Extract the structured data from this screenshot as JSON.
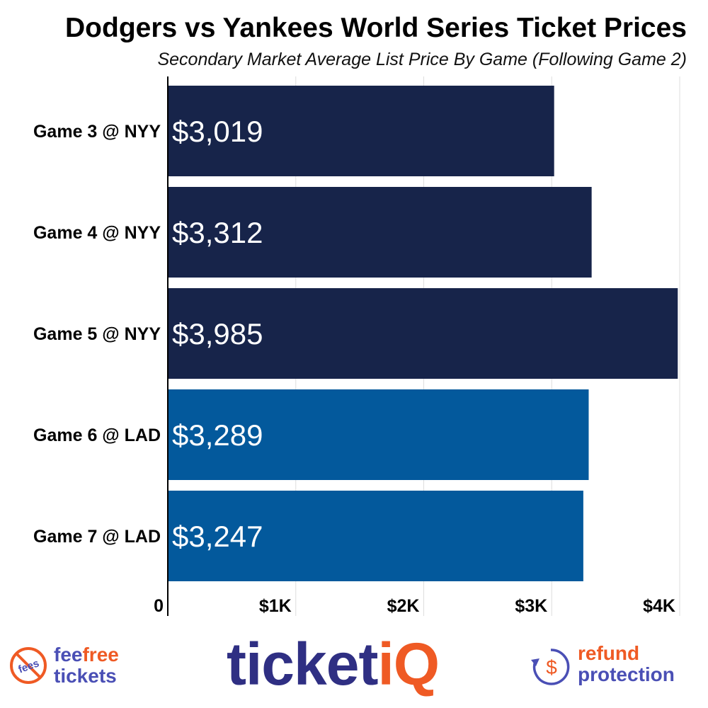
{
  "chart_data": {
    "type": "bar",
    "orientation": "horizontal",
    "title": "Dodgers vs Yankees World Series Ticket Prices",
    "subtitle": "Secondary Market Average List Price By Game (Following Game 2)",
    "categories": [
      "Game 3 @ NYY",
      "Game 4 @ NYY",
      "Game 5 @ NYY",
      "Game 6 @ LAD",
      "Game 7 @ LAD"
    ],
    "values": [
      3019,
      3312,
      3985,
      3289,
      3247
    ],
    "value_labels": [
      "$3,019",
      "$3,312",
      "$3,985",
      "$3,289",
      "$3,247"
    ],
    "bar_colors": [
      "#17244a",
      "#17244a",
      "#17244a",
      "#03599c",
      "#03599c"
    ],
    "x_ticks": [
      0,
      1000,
      2000,
      3000,
      4000
    ],
    "x_tick_labels": [
      "0",
      "$1K",
      "$2K",
      "$3K",
      "$4K"
    ],
    "xlim": [
      0,
      4000
    ],
    "grid": "vertical",
    "legend": "none"
  },
  "footer": {
    "badge_text": "fees",
    "fee_a": "fee",
    "fee_b": "free",
    "fee_line2": "tickets",
    "brand_main": "ticket",
    "brand_accent": "iQ",
    "refund_line1": "refund",
    "refund_line2": "protection",
    "refund_symbol": "$"
  },
  "colors": {
    "navy": "#17244a",
    "blue": "#03599c",
    "orange": "#ef5a24",
    "purple": "#4a4fb5",
    "brand": "#2f2f83"
  }
}
